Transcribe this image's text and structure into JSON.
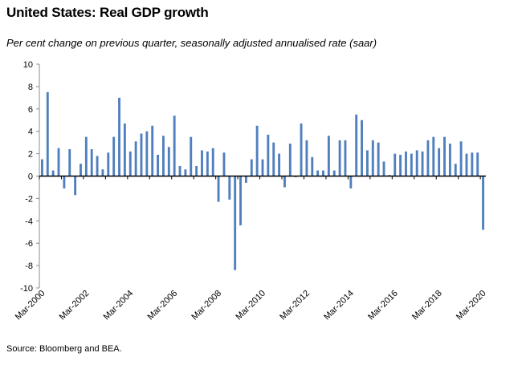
{
  "title": "United States: Real GDP growth",
  "subtitle": "Per cent change on previous quarter, seasonally adjusted annualised rate (saar)",
  "source": "Source: Bloomberg and BEA.",
  "colors": {
    "bar": "#4f7fbe",
    "axis": "#000000",
    "tick_line": "#8c8c8c"
  },
  "chart_data": {
    "type": "bar",
    "title": "United States: Real GDP growth",
    "ylabel": "Per cent change on previous quarter, seasonally adjusted annualised rate (saar)",
    "xlabel": "",
    "ylim": [
      -10,
      10
    ],
    "yticks": [
      10,
      8,
      6,
      4,
      2,
      0,
      -2,
      -4,
      -6,
      -8,
      -10
    ],
    "x_tick_labels": [
      "Mar-2000",
      "Mar-2002",
      "Mar-2004",
      "Mar-2006",
      "Mar-2008",
      "Mar-2010",
      "Mar-2012",
      "Mar-2014",
      "Mar-2016",
      "Mar-2018",
      "Mar-2020"
    ],
    "start_quarter": "Mar-2000",
    "end_quarter": "Mar-2020",
    "series": [
      {
        "name": "Real GDP growth (saar, %)",
        "values": [
          1.5,
          7.5,
          0.5,
          2.5,
          -1.1,
          2.4,
          -1.7,
          1.1,
          3.5,
          2.4,
          1.8,
          0.6,
          2.1,
          3.5,
          7.0,
          4.7,
          2.2,
          3.1,
          3.8,
          4.0,
          4.5,
          1.9,
          3.6,
          2.6,
          5.4,
          0.9,
          0.6,
          3.5,
          0.9,
          2.3,
          2.2,
          2.5,
          -2.3,
          2.1,
          -2.1,
          -8.4,
          -4.4,
          -0.6,
          1.5,
          4.5,
          1.5,
          3.7,
          3.0,
          2.0,
          -1.0,
          2.9,
          -0.1,
          4.7,
          3.2,
          1.7,
          0.5,
          0.5,
          3.6,
          0.5,
          3.2,
          3.2,
          -1.1,
          5.5,
          5.0,
          2.3,
          3.2,
          3.0,
          1.3,
          0.1,
          2.0,
          1.9,
          2.2,
          2.0,
          2.3,
          2.2,
          3.2,
          3.5,
          2.5,
          3.5,
          2.9,
          1.1,
          3.1,
          2.0,
          2.1,
          2.1,
          -4.8
        ]
      }
    ]
  }
}
